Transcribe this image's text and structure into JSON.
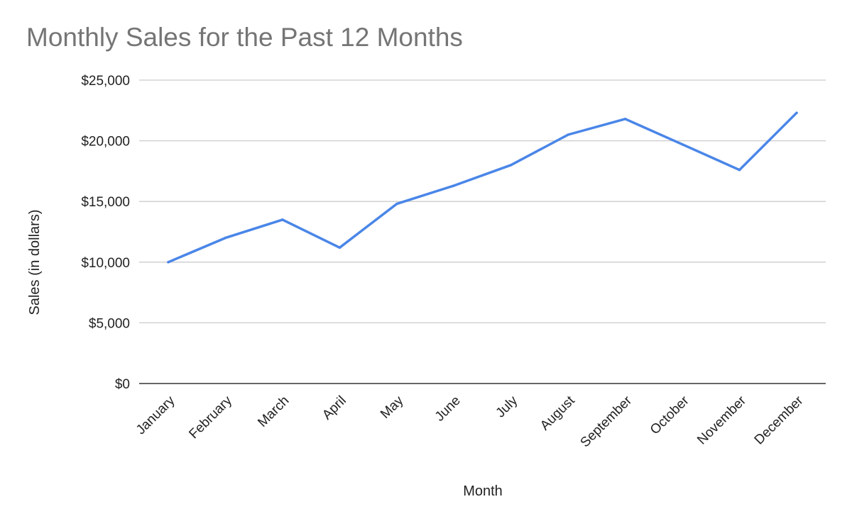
{
  "chart_data": {
    "type": "line",
    "title": "Monthly Sales for the Past 12 Months",
    "xlabel": "Month",
    "ylabel": "Sales (in dollars)",
    "categories": [
      "January",
      "February",
      "March",
      "April",
      "May",
      "June",
      "July",
      "August",
      "September",
      "October",
      "November",
      "December"
    ],
    "series": [
      {
        "values": [
          10000,
          12000,
          13500,
          11200,
          14800,
          16300,
          18000,
          20500,
          21800,
          19700,
          17600,
          22300
        ]
      }
    ],
    "ylim": [
      0,
      25000
    ],
    "yticks": [
      0,
      5000,
      10000,
      15000,
      20000,
      25000
    ],
    "ytick_labels": [
      "$0",
      "$5,000",
      "$10,000",
      "$15,000",
      "$20,000",
      "$25,000"
    ],
    "grid": true,
    "legend": "none",
    "line_color": "#4a86e8"
  }
}
